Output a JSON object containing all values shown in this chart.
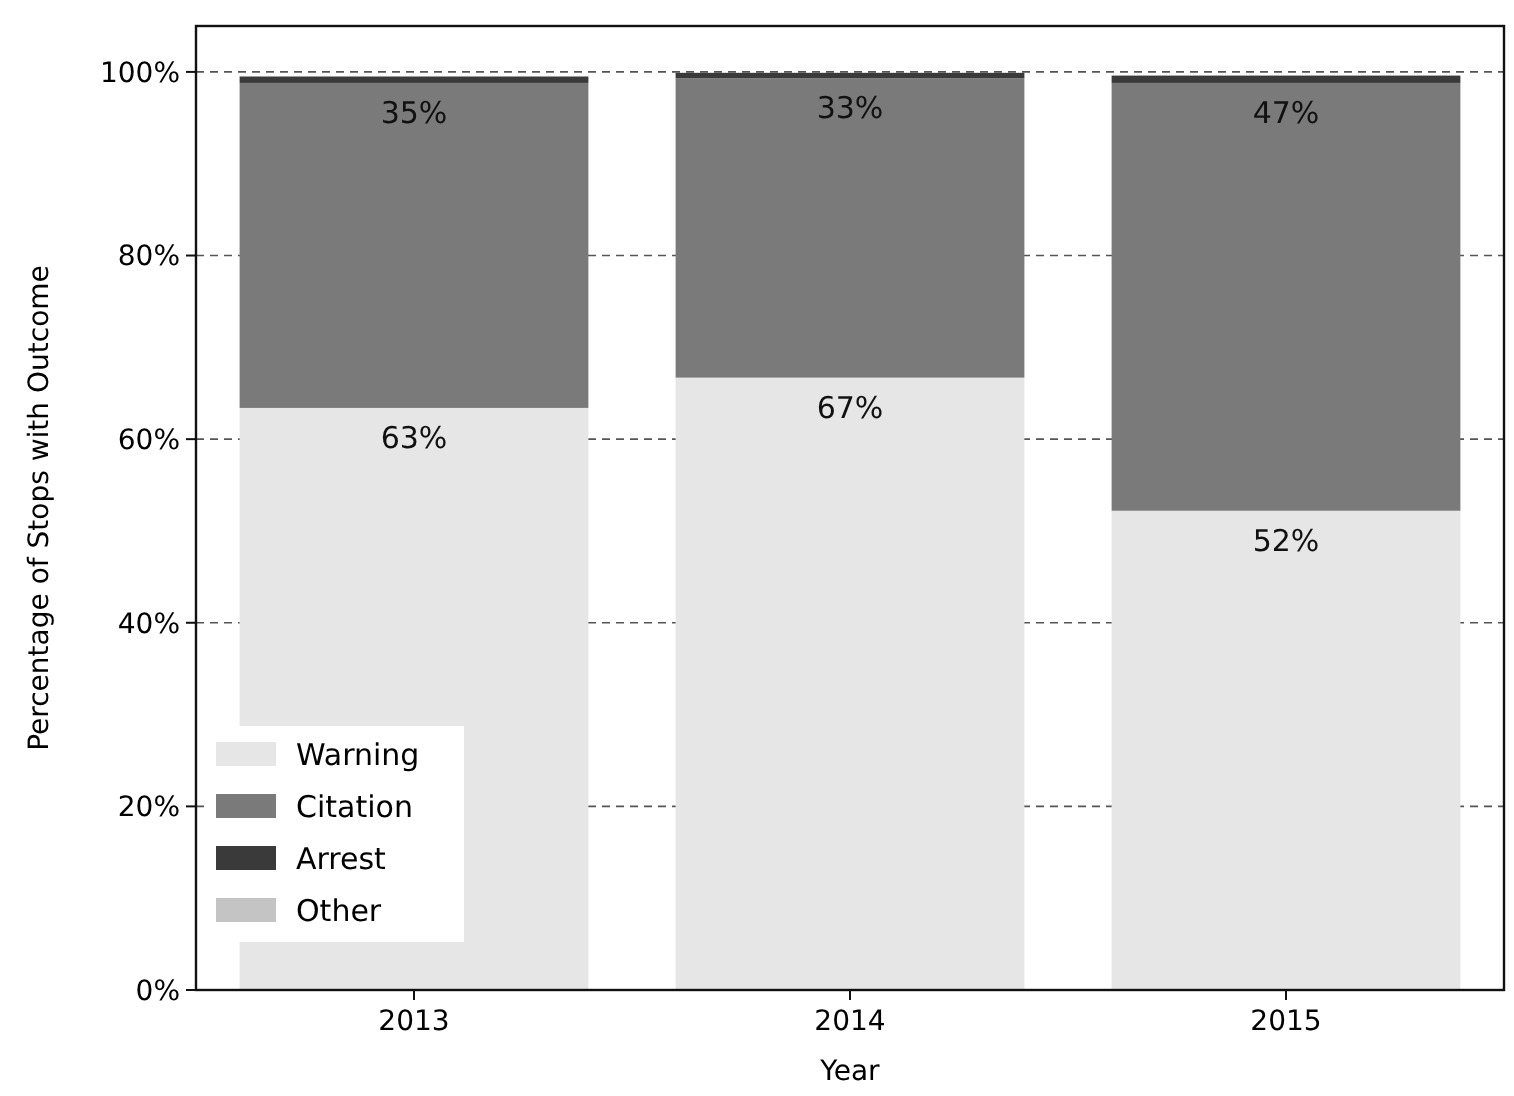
{
  "chart_data": {
    "type": "bar",
    "stacked": true,
    "xlabel": "Year",
    "ylabel": "Percentage of Stops with Outcome",
    "categories": [
      "2013",
      "2014",
      "2015"
    ],
    "series": [
      {
        "name": "Warning",
        "color": "#e6e6e6",
        "values": [
          63.4,
          66.7,
          52.2
        ],
        "value_labels": [
          "63%",
          "67%",
          "52%"
        ]
      },
      {
        "name": "Citation",
        "color": "#7a7a7a",
        "values": [
          35.4,
          32.6,
          46.6
        ],
        "value_labels": [
          "35%",
          "33%",
          "47%"
        ]
      },
      {
        "name": "Arrest",
        "color": "#3a3a3a",
        "values": [
          0.7,
          0.6,
          0.8
        ]
      },
      {
        "name": "Other",
        "color": "#c4c4c4",
        "values": [
          null,
          null,
          null
        ]
      }
    ],
    "ylim": [
      0,
      105
    ],
    "yticks": [
      {
        "value": 0,
        "label": "0%"
      },
      {
        "value": 20,
        "label": "20%"
      },
      {
        "value": 40,
        "label": "40%"
      },
      {
        "value": 60,
        "label": "60%"
      },
      {
        "value": 80,
        "label": "80%"
      },
      {
        "value": 100,
        "label": "100%"
      }
    ],
    "grid": "y",
    "legend": "bottom left"
  }
}
